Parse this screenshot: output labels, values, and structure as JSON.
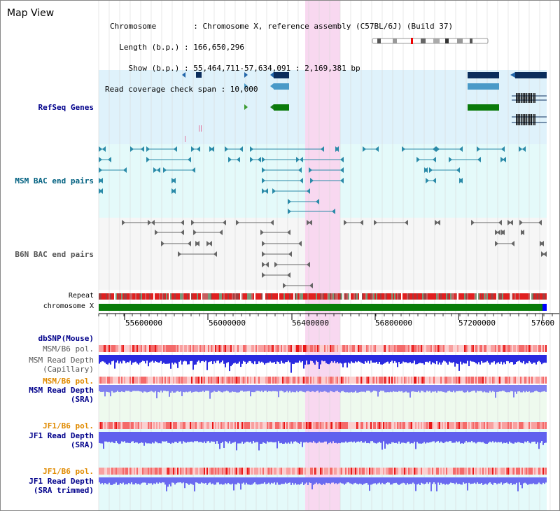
{
  "view": {
    "title": "Map View",
    "info_lines": [
      "Chromosome        : Chromosome X, reference assembly (C57BL/6J) (Build 37)",
      "  Length (b.p.) : 166,650,296",
      "    Show (b.p.) : 55,464,711-57,634,091 : 2,169,381 bp",
      "Read coverage check span : 10,000"
    ]
  },
  "tracks": {
    "refseq": "RefSeq Genes",
    "msm_bac": "MSM BAC end pairs",
    "b6n_bac": "B6N BAC end pairs",
    "repeat": "Repeat",
    "chromosome": "chromosome X",
    "dbsnp": "dbSNP(Mouse)",
    "msm_b6_pol_1": "MSM/B6 pol.",
    "msm_depth_cap_1": "MSM Read Depth",
    "msm_depth_cap_2": "(Capillary)",
    "msm_b6_pol_2": "MSM/B6 pol.",
    "msm_depth_sra_1": "MSM Read Depth",
    "msm_depth_sra_2": "(SRA)",
    "jf1_b6_pol_1": "JF1/B6 pol.",
    "jf1_depth_sra_1": "JF1 Read Depth",
    "jf1_depth_sra_2": "(SRA)",
    "jf1_b6_pol_2": "JF1/B6 pol.",
    "jf1_depth_trim_1": "JF1 Read Depth",
    "jf1_depth_trim_2": "(SRA trimmed)"
  },
  "axis": {
    "ticks": [
      "55600000",
      "56000000",
      "56400000",
      "56800000",
      "57200000",
      "57600"
    ]
  },
  "colors": {
    "navy_label": "#00008b",
    "teal_label": "#006080",
    "gray_label": "#555555",
    "orange_label": "#e08a00",
    "refseq_bg": "#dff2fb",
    "bac_bg": "#e4fafa",
    "b6n_bg": "#f6f6f6",
    "highlight": "#f8d8f0",
    "chromosome_bar": "#0a7d0a"
  }
}
